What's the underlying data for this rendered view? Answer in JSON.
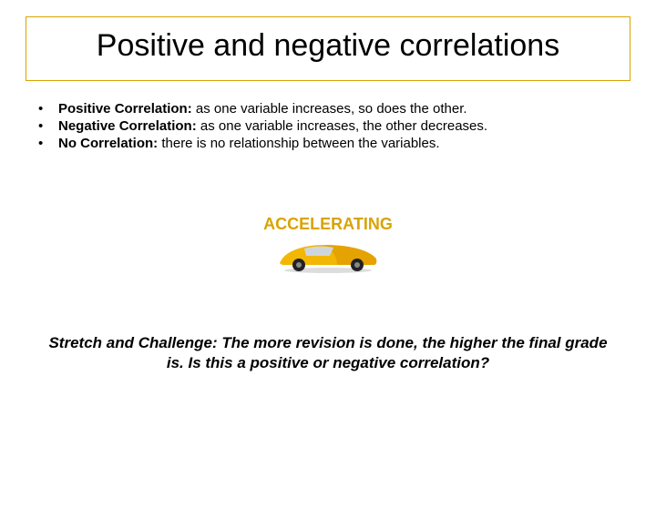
{
  "title": "Positive and negative correlations",
  "title_border_color": "#d9a300",
  "title_fontsize": 34,
  "bullets": [
    {
      "term": "Positive Correlation:",
      "def": " as one variable increases, so does the other."
    },
    {
      "term": "Negative Correlation:",
      "def": " as one variable increases, the other decreases."
    },
    {
      "term": "No Correlation:",
      "def": " there is no relationship between the variables."
    }
  ],
  "bullet_fontsize": 15,
  "accelerating": {
    "label": "ACCELERATING",
    "label_color": "#d9a300",
    "label_fontsize": 18,
    "car": {
      "body_color": "#f2b705",
      "body_shade": "#d99400",
      "wheel_color": "#222222",
      "window_color": "#cfd6db",
      "width": 120,
      "height": 40
    }
  },
  "stretch": {
    "lead": "Stretch and Challenge:",
    "text": " The more revision is done, the higher the final grade is.  Is this a positive or negative correlation?",
    "fontsize": 17
  },
  "background_color": "#ffffff"
}
